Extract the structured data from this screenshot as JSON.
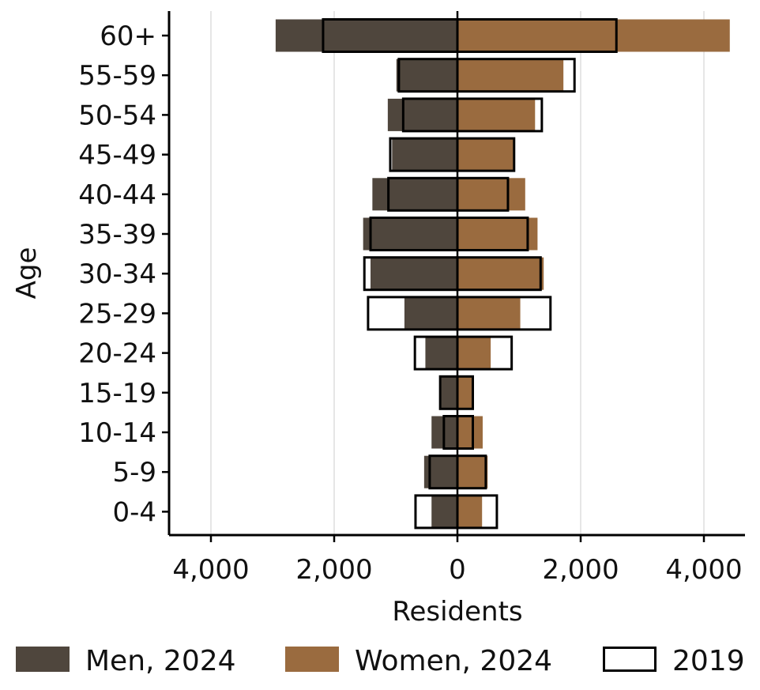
{
  "chart_data": {
    "type": "bar",
    "orientation": "horizontal",
    "subtype": "population-pyramid",
    "title": "",
    "xlabel": "Residents",
    "ylabel": "Age",
    "categories": [
      "0-4",
      "5-9",
      "10-14",
      "15-19",
      "20-24",
      "25-29",
      "30-34",
      "35-39",
      "40-44",
      "45-49",
      "50-54",
      "55-59",
      "60+"
    ],
    "x_ticks": [
      -4000,
      -2000,
      0,
      2000,
      4000
    ],
    "x_tick_labels": [
      "4,000",
      "2,000",
      "0",
      "2,000",
      "4,000"
    ],
    "xlim": [
      -4700,
      4700
    ],
    "grid": "vertical",
    "legend_position": "bottom",
    "series": [
      {
        "name": "Men, 2024",
        "side": "left",
        "color": "#4f463d",
        "style": "filled",
        "values": [
          420,
          540,
          420,
          280,
          520,
          860,
          1410,
          1530,
          1380,
          1060,
          1130,
          990,
          2950
        ]
      },
      {
        "name": "Women, 2024",
        "side": "right",
        "color": "#9a6b3f",
        "style": "filled",
        "values": [
          400,
          490,
          410,
          250,
          540,
          1020,
          1400,
          1300,
          1100,
          910,
          1260,
          1720,
          4420
        ]
      },
      {
        "name": "2019",
        "style": "outline",
        "color": "#000000",
        "values_left": [
          680,
          450,
          220,
          280,
          690,
          1450,
          1510,
          1410,
          1120,
          1090,
          880,
          950,
          2180
        ],
        "values_right": [
          640,
          460,
          250,
          250,
          880,
          1510,
          1350,
          1140,
          820,
          920,
          1370,
          1900,
          2580
        ]
      }
    ]
  }
}
